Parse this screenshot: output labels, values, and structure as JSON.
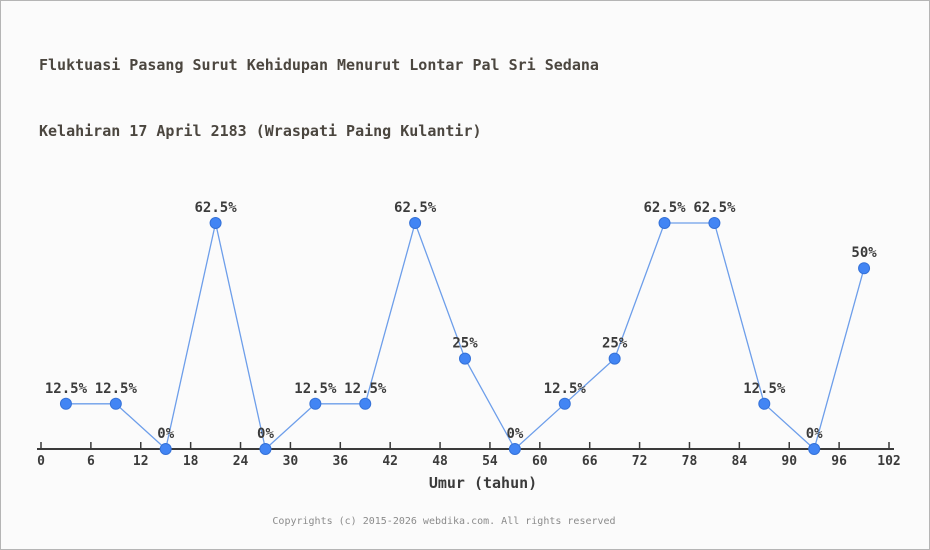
{
  "page": {
    "background_color": "#fbfbfb",
    "border_color": "#b5b5b5"
  },
  "header": {
    "title_line1": "Fluktuasi Pasang Surut Kehidupan Menurut Lontar Pal Sri Sedana",
    "title_line2": "Kelahiran 17 April 2183 (Wraspati Paing Kulantir)"
  },
  "footer": {
    "copyright": "Copyrights (c) 2015-2026 webdika.com. All rights reserved"
  },
  "chart_data": {
    "type": "line",
    "title": "Fluktuasi Pasang Surut Kehidupan Menurut Lontar Pal Sri Sedana Kelahiran 17 April 2183 (Wraspati Paing Kulantir)",
    "xlabel": "Umur (tahun)",
    "ylabel": "",
    "x": [
      3,
      9,
      15,
      21,
      27,
      33,
      39,
      45,
      51,
      57,
      63,
      69,
      75,
      81,
      87,
      93,
      99
    ],
    "values": [
      12.5,
      12.5,
      0,
      62.5,
      0,
      12.5,
      12.5,
      62.5,
      25,
      0,
      12.5,
      25,
      62.5,
      62.5,
      12.5,
      0,
      50
    ],
    "point_labels": [
      "12.5%",
      "12.5%",
      "0%",
      "62.5%",
      "0%",
      "12.5%",
      "12.5%",
      "62.5%",
      "25%",
      "0%",
      "12.5%",
      "25%",
      "62.5%",
      "62.5%",
      "12.5%",
      "0%",
      "50%"
    ],
    "x_ticks": [
      0,
      6,
      12,
      18,
      24,
      30,
      36,
      42,
      48,
      54,
      60,
      66,
      72,
      78,
      84,
      90,
      96,
      102
    ],
    "xlim": [
      0,
      102
    ],
    "ylim": [
      0,
      70
    ],
    "grid": false,
    "legend_position": "none",
    "y_axis_shown": false,
    "colors": {
      "line": "#6d9eea",
      "marker_fill": "#4285f4",
      "marker_stroke": "#3572d8",
      "axis": "#3a3a3a",
      "label_text": "#3b3b3b"
    }
  }
}
